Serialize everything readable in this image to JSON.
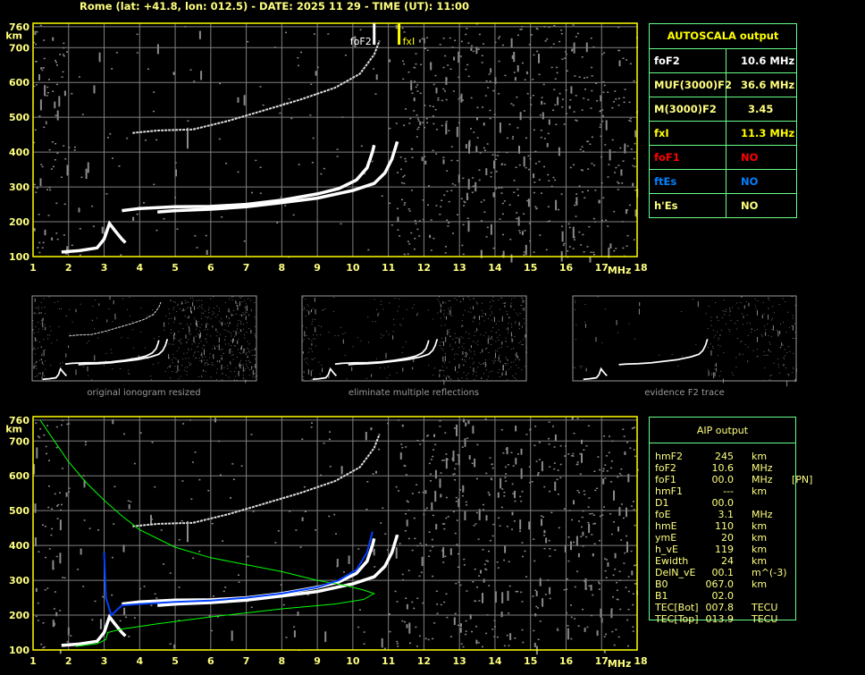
{
  "title": "Rome (lat: +41.8, lon: 012.5) - DATE: 2025 11 29 - TIME (UT): 11:00",
  "autoscala": {
    "header": "AUTOSCALA output",
    "rows": [
      {
        "k": "foF2",
        "v": "10.6 MHz",
        "color": "#ffffff"
      },
      {
        "k": "MUF(3000)F2",
        "v": "36.6 MHz",
        "color": "#ffff80"
      },
      {
        "k": "M(3000)F2",
        "v": "  3.45",
        "color": "#ffff80"
      },
      {
        "k": "fxI",
        "v": "11.3 MHz",
        "color": "#ffff00"
      },
      {
        "k": "foF1",
        "v": "NO",
        "color": "#ff0000"
      },
      {
        "k": "ftEs",
        "v": "NO",
        "color": "#0080ff"
      },
      {
        "k": "h'Es",
        "v": "NO",
        "color": "#ffff80"
      }
    ]
  },
  "aip": {
    "header": "AIP output",
    "rows": [
      [
        "hmF2",
        "245",
        "km",
        ""
      ],
      [
        "foF2",
        "10.6",
        "MHz",
        ""
      ],
      [
        "foF1",
        "00.0",
        "MHz",
        "[PN]"
      ],
      [
        "hmF1",
        "---",
        "km",
        ""
      ],
      [
        "D1",
        "00.0",
        "",
        ""
      ],
      [
        "foE",
        "3.1",
        "MHz",
        ""
      ],
      [
        "hmE",
        "110",
        "km",
        ""
      ],
      [
        "ymE",
        "20",
        "km",
        ""
      ],
      [
        "h_vE",
        "119",
        "km",
        ""
      ],
      [
        "Ewidth",
        "24",
        "km",
        ""
      ],
      [
        "DelN_vE",
        "00.1",
        "m^(-3)",
        ""
      ],
      [
        "B0",
        "067.0",
        "km",
        ""
      ],
      [
        "B1",
        "02.0",
        "",
        ""
      ],
      [
        "TEC[Bot]",
        "007.8",
        "TECU",
        ""
      ],
      [
        "TEC[Top]",
        "013.9",
        "TECU",
        ""
      ]
    ]
  },
  "captions": [
    "original ionogram resized",
    "eliminate multiple reflections",
    "evidence F2 trace"
  ],
  "chart_data": [
    {
      "type": "scatter",
      "title": "",
      "xlabel": "MHz",
      "ylabel": "km",
      "xlim": [
        1,
        18
      ],
      "ylim": [
        100,
        760
      ],
      "xticks": [
        "1",
        "2",
        "3",
        "4",
        "5",
        "6",
        "7",
        "8",
        "9",
        "10",
        "11",
        "12",
        "13",
        "14",
        "15",
        "16",
        "17",
        "18"
      ],
      "yticks": [
        "100",
        "200",
        "300",
        "400",
        "500",
        "600",
        "700",
        "760"
      ],
      "grid": true,
      "markers": [
        {
          "label": "foF2",
          "x": 10.6,
          "color": "#ffffff"
        },
        {
          "label": "fxI",
          "x": 11.3,
          "color": "#ffff00"
        }
      ],
      "traces": {
        "E": [
          [
            1.8,
            113
          ],
          [
            2.3,
            117
          ],
          [
            2.8,
            125
          ],
          [
            3.0,
            150
          ],
          [
            3.15,
            195
          ],
          [
            3.3,
            175
          ],
          [
            3.5,
            150
          ],
          [
            3.6,
            140
          ]
        ],
        "F2_o": [
          [
            3.5,
            232
          ],
          [
            4,
            238
          ],
          [
            5,
            243
          ],
          [
            6,
            244
          ],
          [
            7,
            250
          ],
          [
            8,
            262
          ],
          [
            9,
            280
          ],
          [
            9.6,
            295
          ],
          [
            10.1,
            320
          ],
          [
            10.4,
            355
          ],
          [
            10.55,
            400
          ],
          [
            10.6,
            420
          ]
        ],
        "F2_x": [
          [
            4.5,
            228
          ],
          [
            5,
            232
          ],
          [
            6,
            236
          ],
          [
            7,
            243
          ],
          [
            8,
            255
          ],
          [
            9,
            268
          ],
          [
            10,
            290
          ],
          [
            10.6,
            310
          ],
          [
            10.9,
            340
          ],
          [
            11.1,
            380
          ],
          [
            11.25,
            430
          ]
        ],
        "F2_multi": [
          [
            3.8,
            455
          ],
          [
            4.5,
            462
          ],
          [
            5.5,
            465
          ],
          [
            6.5,
            490
          ],
          [
            7.5,
            520
          ],
          [
            8.5,
            550
          ],
          [
            9.5,
            585
          ],
          [
            10.2,
            625
          ],
          [
            10.6,
            680
          ],
          [
            10.75,
            720
          ]
        ]
      }
    },
    {
      "type": "line",
      "xlabel": "MHz",
      "ylabel": "km",
      "xlim": [
        1,
        18
      ],
      "ylim": [
        100,
        760
      ],
      "xticks": [
        "1",
        "2",
        "3",
        "4",
        "5",
        "6",
        "7",
        "8",
        "9",
        "10",
        "11",
        "12",
        "13",
        "14",
        "15",
        "16",
        "17",
        "18"
      ],
      "yticks": [
        "100",
        "200",
        "300",
        "400",
        "500",
        "600",
        "700",
        "760"
      ],
      "grid": true,
      "profile": [
        [
          1.2,
          760
        ],
        [
          1.6,
          700
        ],
        [
          2,
          640
        ],
        [
          2.5,
          580
        ],
        [
          3,
          530
        ],
        [
          3.5,
          485
        ],
        [
          4,
          445
        ],
        [
          5,
          395
        ],
        [
          6,
          365
        ],
        [
          7,
          345
        ],
        [
          8,
          325
        ],
        [
          9,
          300
        ],
        [
          9.8,
          285
        ],
        [
          10.3,
          272
        ],
        [
          10.6,
          262
        ],
        [
          10.3,
          245
        ],
        [
          9.5,
          232
        ],
        [
          8,
          218
        ],
        [
          6,
          195
        ],
        [
          4.5,
          175
        ],
        [
          3.5,
          160
        ],
        [
          3.1,
          150
        ],
        [
          3.05,
          130
        ],
        [
          2.8,
          118
        ],
        [
          2.2,
          110
        ]
      ],
      "fitted_trace": [
        [
          3.0,
          380
        ],
        [
          3.05,
          250
        ],
        [
          3.2,
          200
        ],
        [
          3.5,
          228
        ],
        [
          4,
          232
        ],
        [
          5,
          238
        ],
        [
          6,
          242
        ],
        [
          7,
          250
        ],
        [
          8,
          262
        ],
        [
          9,
          280
        ],
        [
          9.6,
          300
        ],
        [
          10.1,
          330
        ],
        [
          10.4,
          380
        ],
        [
          10.55,
          440
        ]
      ]
    }
  ],
  "colors": {
    "axis": "#ffff00",
    "grid": "#808080",
    "profile": "#00ff00",
    "fit": "#0040ff"
  }
}
